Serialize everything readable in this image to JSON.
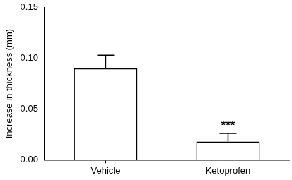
{
  "chart_data": {
    "type": "bar",
    "categories": [
      "Vehicle",
      "Ketoprofen"
    ],
    "values": [
      0.09,
      0.018
    ],
    "errors": [
      0.013,
      0.008
    ],
    "color": "#ffffff",
    "ylabel": "Increase in thickness (mm)",
    "ylim": [
      0,
      0.15
    ],
    "yticks": [
      {
        "value": 0,
        "label": "0.00"
      },
      0.05,
      {
        "value": 0.1,
        "label": "0.10"
      },
      0.15
    ],
    "grid": false,
    "annotations": [
      {
        "text": "***",
        "category": "Ketoprofen"
      }
    ]
  }
}
